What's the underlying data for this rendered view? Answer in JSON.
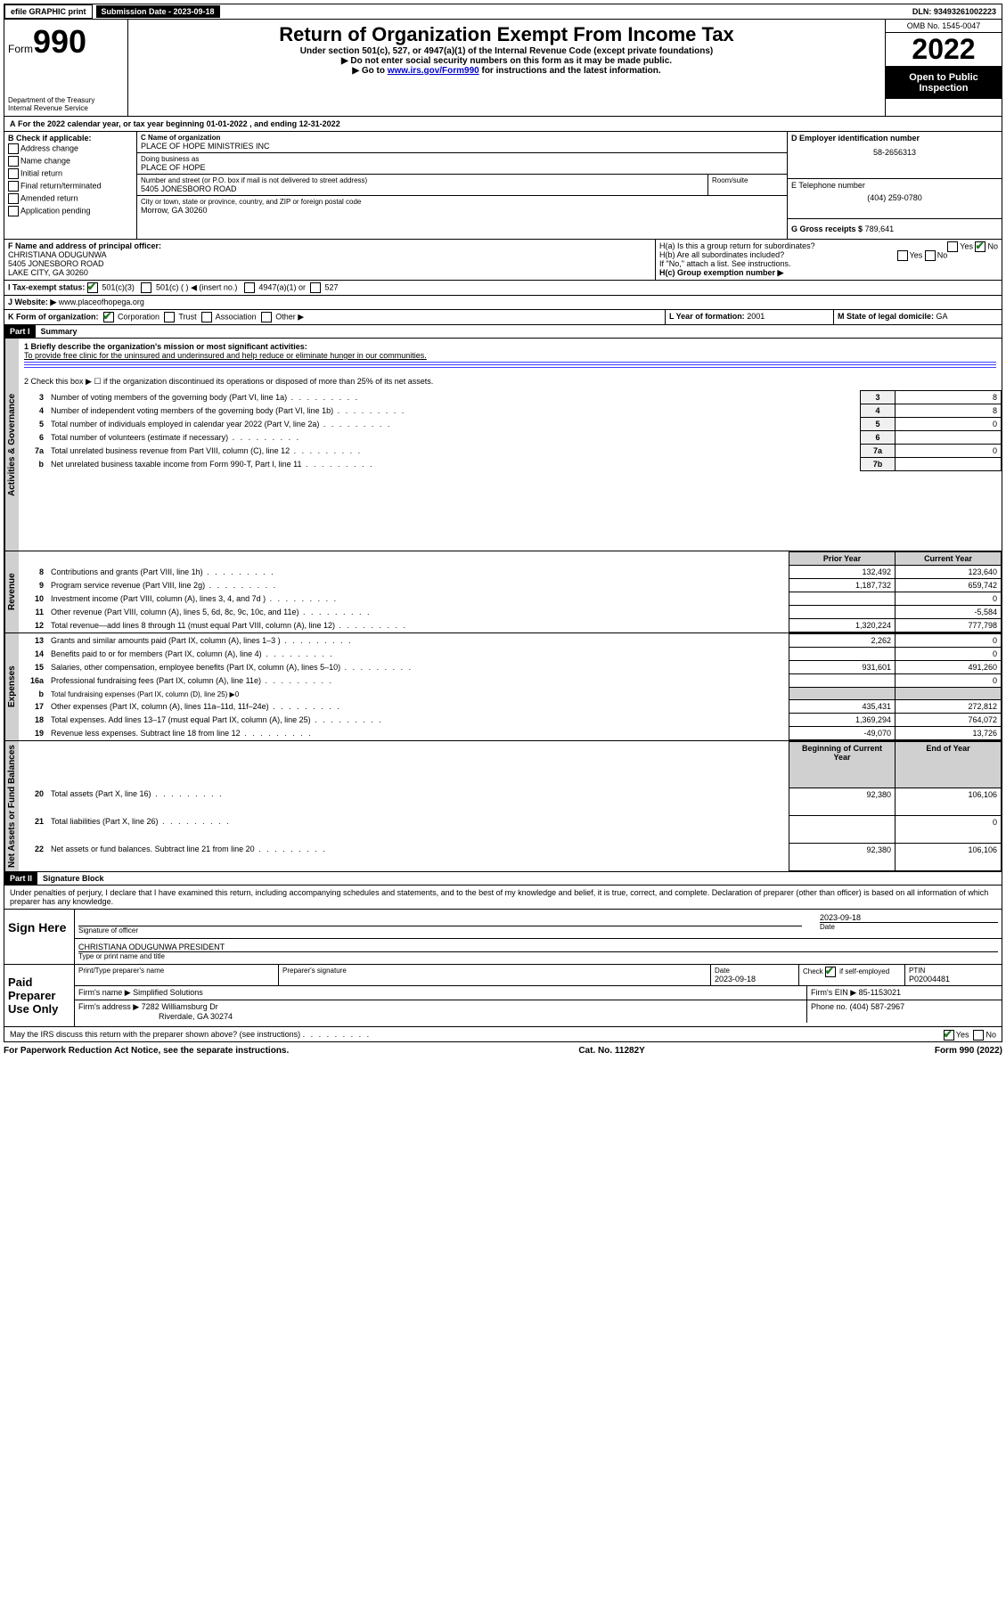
{
  "topbar": {
    "efile": "efile GRAPHIC print",
    "submission_label": "Submission Date - 2023-09-18",
    "dln": "DLN: 93493261002223"
  },
  "header": {
    "form_word": "Form",
    "form_num": "990",
    "dept": "Department of the Treasury",
    "irs": "Internal Revenue Service",
    "title": "Return of Organization Exempt From Income Tax",
    "subtitle": "Under section 501(c), 527, or 4947(a)(1) of the Internal Revenue Code (except private foundations)",
    "instr1": "▶ Do not enter social security numbers on this form as it may be made public.",
    "instr2_a": "▶ Go to ",
    "instr2_link": "www.irs.gov/Form990",
    "instr2_b": " for instructions and the latest information.",
    "omb": "OMB No. 1545-0047",
    "year": "2022",
    "open": "Open to Public Inspection"
  },
  "period": {
    "label_a": "For the 2022 calendar year, or tax year beginning ",
    "begin": "01-01-2022",
    "label_mid": " , and ending ",
    "end": "12-31-2022"
  },
  "boxB": {
    "label": "B Check if applicable:",
    "items": [
      "Address change",
      "Name change",
      "Initial return",
      "Final return/terminated",
      "Amended return",
      "Application pending"
    ]
  },
  "boxC": {
    "name_label": "C Name of organization",
    "name": "PLACE OF HOPE MINISTRIES INC",
    "dba_label": "Doing business as",
    "dba": "PLACE OF HOPE",
    "street_label": "Number and street (or P.O. box if mail is not delivered to street address)",
    "room_label": "Room/suite",
    "street": "5405 JONESBORO ROAD",
    "city_label": "City or town, state or province, country, and ZIP or foreign postal code",
    "city": "Morrow, GA   30260"
  },
  "boxD": {
    "label": "D Employer identification number",
    "ein": "58-2656313"
  },
  "boxE": {
    "label": "E Telephone number",
    "phone": "(404) 259-0780"
  },
  "boxG": {
    "label": "G Gross receipts $",
    "amount": "789,641"
  },
  "boxF": {
    "label": "F Name and address of principal officer:",
    "name": "CHRISTIANA ODUGUNWA",
    "addr1": "5405 JONESBORO ROAD",
    "addr2": "LAKE CITY, GA   30260"
  },
  "boxH": {
    "a_label": "H(a)  Is this a group return for subordinates?",
    "b_label": "H(b)  Are all subordinates included?",
    "b_note": "If \"No,\" attach a list. See instructions.",
    "c_label": "H(c)  Group exemption number ▶"
  },
  "boxI": {
    "label": "I   Tax-exempt status:",
    "opt1": "501(c)(3)",
    "opt2": "501(c) (  ) ◀ (insert no.)",
    "opt3": "4947(a)(1) or",
    "opt4": "527"
  },
  "boxJ": {
    "label": "J   Website: ▶",
    "value": "www.placeofhopega.org"
  },
  "boxK": {
    "label": "K Form of organization:",
    "opts": [
      "Corporation",
      "Trust",
      "Association",
      "Other ▶"
    ]
  },
  "boxL": {
    "label": "L Year of formation: ",
    "value": "2001"
  },
  "boxM": {
    "label": "M State of legal domicile: ",
    "value": "GA"
  },
  "part1": {
    "label": "Part I",
    "title": "Summary",
    "mission_label": "1   Briefly describe the organization's mission or most significant activities:",
    "mission": "To provide free clinic for the uninsured and underinsured and help reduce or eliminate hunger in our communities.",
    "line2": "2   Check this box ▶ ☐  if the organization discontinued its operations or disposed of more than 25% of its net assets.",
    "gov_label": "Activities & Governance",
    "rev_label": "Revenue",
    "exp_label": "Expenses",
    "na_label": "Net Assets or Fund Balances",
    "rows_gov": [
      {
        "n": "3",
        "txt": "Number of voting members of the governing body (Part VI, line 1a)",
        "box": "3",
        "val": "8"
      },
      {
        "n": "4",
        "txt": "Number of independent voting members of the governing body (Part VI, line 1b)",
        "box": "4",
        "val": "8"
      },
      {
        "n": "5",
        "txt": "Total number of individuals employed in calendar year 2022 (Part V, line 2a)",
        "box": "5",
        "val": "0"
      },
      {
        "n": "6",
        "txt": "Total number of volunteers (estimate if necessary)",
        "box": "6",
        "val": ""
      },
      {
        "n": "7a",
        "txt": "Total unrelated business revenue from Part VIII, column (C), line 12",
        "box": "7a",
        "val": "0"
      },
      {
        "n": "b",
        "txt": "Net unrelated business taxable income from Form 990-T, Part I, line 11",
        "box": "7b",
        "val": ""
      }
    ],
    "hdr_prior": "Prior Year",
    "hdr_current": "Current Year",
    "rows_rev": [
      {
        "n": "8",
        "txt": "Contributions and grants (Part VIII, line 1h)",
        "p": "132,492",
        "c": "123,640"
      },
      {
        "n": "9",
        "txt": "Program service revenue (Part VIII, line 2g)",
        "p": "1,187,732",
        "c": "659,742"
      },
      {
        "n": "10",
        "txt": "Investment income (Part VIII, column (A), lines 3, 4, and 7d )",
        "p": "",
        "c": "0"
      },
      {
        "n": "11",
        "txt": "Other revenue (Part VIII, column (A), lines 5, 6d, 8c, 9c, 10c, and 11e)",
        "p": "",
        "c": "-5,584"
      },
      {
        "n": "12",
        "txt": "Total revenue—add lines 8 through 11 (must equal Part VIII, column (A), line 12)",
        "p": "1,320,224",
        "c": "777,798"
      }
    ],
    "rows_exp": [
      {
        "n": "13",
        "txt": "Grants and similar amounts paid (Part IX, column (A), lines 1–3 )",
        "p": "2,262",
        "c": "0"
      },
      {
        "n": "14",
        "txt": "Benefits paid to or for members (Part IX, column (A), line 4)",
        "p": "",
        "c": "0"
      },
      {
        "n": "15",
        "txt": "Salaries, other compensation, employee benefits (Part IX, column (A), lines 5–10)",
        "p": "931,601",
        "c": "491,260"
      },
      {
        "n": "16a",
        "txt": "Professional fundraising fees (Part IX, column (A), line 11e)",
        "p": "",
        "c": "0"
      },
      {
        "n": "b",
        "txt": "Total fundraising expenses (Part IX, column (D), line 25) ▶0",
        "p": null,
        "c": null
      },
      {
        "n": "17",
        "txt": "Other expenses (Part IX, column (A), lines 11a–11d, 11f–24e)",
        "p": "435,431",
        "c": "272,812"
      },
      {
        "n": "18",
        "txt": "Total expenses. Add lines 13–17 (must equal Part IX, column (A), line 25)",
        "p": "1,369,294",
        "c": "764,072"
      },
      {
        "n": "19",
        "txt": "Revenue less expenses. Subtract line 18 from line 12",
        "p": "-49,070",
        "c": "13,726"
      }
    ],
    "hdr_begin": "Beginning of Current Year",
    "hdr_end": "End of Year",
    "rows_na": [
      {
        "n": "20",
        "txt": "Total assets (Part X, line 16)",
        "p": "92,380",
        "c": "106,106"
      },
      {
        "n": "21",
        "txt": "Total liabilities (Part X, line 26)",
        "p": "",
        "c": "0"
      },
      {
        "n": "22",
        "txt": "Net assets or fund balances. Subtract line 21 from line 20",
        "p": "92,380",
        "c": "106,106"
      }
    ]
  },
  "part2": {
    "label": "Part II",
    "title": "Signature Block",
    "jurat": "Under penalties of perjury, I declare that I have examined this return, including accompanying schedules and statements, and to the best of my knowledge and belief, it is true, correct, and complete. Declaration of preparer (other than officer) is based on all information of which preparer has any knowledge.",
    "sign_here": "Sign Here",
    "sig_officer": "Signature of officer",
    "sig_date_label": "Date",
    "sig_date": "2023-09-18",
    "officer_name": "CHRISTIANA ODUGUNWA   PRESIDENT",
    "officer_sub": "Type or print name and title",
    "paid_prep": "Paid Preparer Use Only",
    "pp_name_label": "Print/Type preparer's name",
    "pp_sig_label": "Preparer's signature",
    "pp_date_label": "Date",
    "pp_date": "2023-09-18",
    "pp_check_label": "Check ☑ if self-employed",
    "ptin_label": "PTIN",
    "ptin": "P02004481",
    "firm_name_label": "Firm's name    ▶",
    "firm_name": "Simplified Solutions",
    "firm_ein_label": "Firm's EIN ▶",
    "firm_ein": "85-1153021",
    "firm_addr_label": "Firm's address ▶",
    "firm_addr1": "7282 Williamsburg Dr",
    "firm_addr2": "Riverdale, GA  30274",
    "phone_label": "Phone no.",
    "phone": "(404) 587-2967",
    "discuss": "May the IRS discuss this return with the preparer shown above? (see instructions)"
  },
  "footer": {
    "left": "For Paperwork Reduction Act Notice, see the separate instructions.",
    "mid": "Cat. No. 11282Y",
    "right": "Form 990 (2022)"
  }
}
